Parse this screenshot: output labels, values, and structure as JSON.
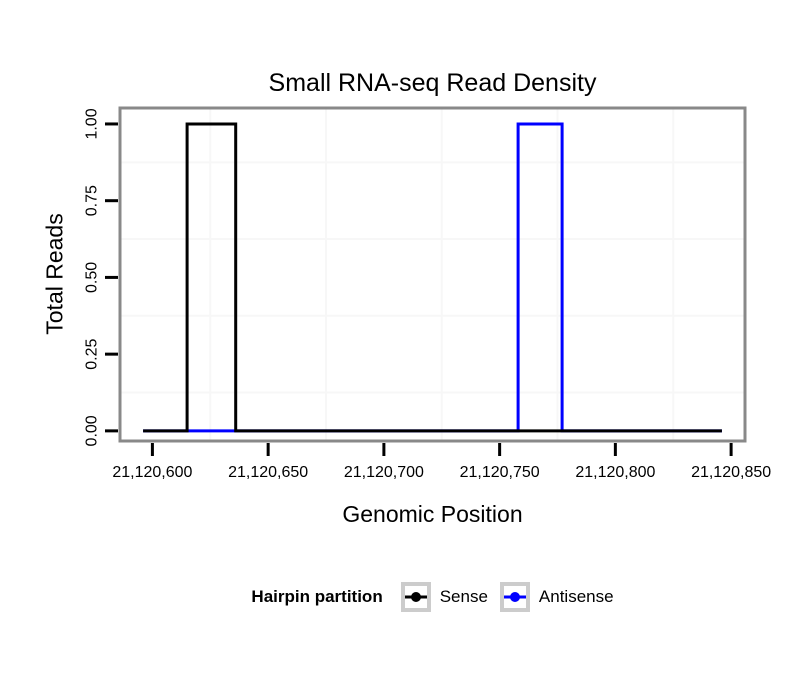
{
  "page": {
    "background": "#ffffff"
  },
  "chart_data": {
    "type": "line",
    "subtype": "step",
    "title": "Small RNA-seq Read Density",
    "xlabel": "Genomic Position",
    "ylabel": "Total Reads",
    "xlim": [
      21120586,
      21120856
    ],
    "ylim": [
      -0.033,
      1.052
    ],
    "x_ticks": {
      "values": [
        21120600,
        21120650,
        21120700,
        21120750,
        21120800,
        21120850
      ],
      "labels": [
        "21,120,600",
        "21,120,650",
        "21,120,700",
        "21,120,750",
        "21,120,800",
        "21,120,850"
      ]
    },
    "y_ticks": {
      "values": [
        0,
        0.25,
        0.5,
        0.75,
        1.0
      ],
      "labels": [
        "0.00",
        "0.25",
        "0.50",
        "0.75",
        "1.00"
      ]
    },
    "grid": {
      "major": "none",
      "minor_x": [
        21120625,
        21120675,
        21120725,
        21120775,
        21120825
      ],
      "minor_y": [
        0.125,
        0.375,
        0.625,
        0.875
      ],
      "color": "#f7f7f7"
    },
    "series": [
      {
        "name": "Antisense",
        "color": "#0000ff",
        "points": [
          [
            21120596,
            0
          ],
          [
            21120758,
            0
          ],
          [
            21120758,
            1
          ],
          [
            21120777,
            1
          ],
          [
            21120777,
            0
          ],
          [
            21120846,
            0
          ]
        ]
      },
      {
        "name": "Sense",
        "color": "#000000",
        "points": [
          [
            21120596,
            0
          ],
          [
            21120615,
            0
          ],
          [
            21120615,
            1
          ],
          [
            21120636,
            1
          ],
          [
            21120636,
            0
          ],
          [
            21120846,
            0
          ]
        ]
      }
    ],
    "legend": {
      "title": "Hairpin partition",
      "position": "bottom",
      "entries": [
        {
          "label": "Sense",
          "color": "#000000"
        },
        {
          "label": "Antisense",
          "color": "#0000ff"
        }
      ]
    }
  },
  "styles": {
    "panel_border": "#898989",
    "tick_color": "#000000",
    "text_color": "#000000",
    "legend_key_border": "#cccccc"
  }
}
